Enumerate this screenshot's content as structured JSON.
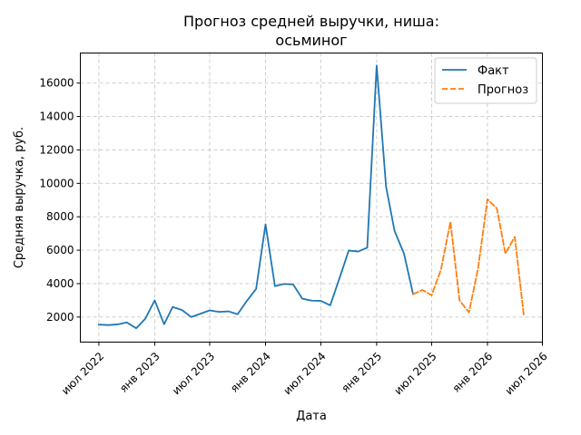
{
  "chart_data": {
    "type": "line",
    "title_lines": [
      "Прогноз средней выручки, ниша:",
      "осьминог"
    ],
    "xlabel": "Дата",
    "ylabel": "Средняя выручка, руб.",
    "x_ticks": [
      "2022-07-01",
      "2023-01-01",
      "2023-07-01",
      "2024-01-01",
      "2024-07-01",
      "2025-01-01",
      "2025-07-01",
      "2026-01-01",
      "2026-07-01"
    ],
    "x_tick_labels": [
      "июл 2022",
      "янв 2023",
      "июл 2023",
      "янв 2024",
      "июл 2024",
      "янв 2025",
      "июл 2025",
      "янв 2026",
      "июл 2026"
    ],
    "xlim": [
      "2022-05-01",
      "2026-07-01"
    ],
    "y_ticks": [
      2000,
      4000,
      6000,
      8000,
      10000,
      12000,
      14000,
      16000
    ],
    "y_tick_labels": [
      "2000",
      "4000",
      "6000",
      "8000",
      "10000",
      "12000",
      "14000",
      "16000"
    ],
    "ylim": [
      500,
      17800
    ],
    "grid": true,
    "legend_position": "top-right",
    "series": [
      {
        "name": "Факт",
        "color": "#1f77b4",
        "style": "solid",
        "points": [
          [
            "2022-07-01",
            1550
          ],
          [
            "2022-08-01",
            1520
          ],
          [
            "2022-09-01",
            1560
          ],
          [
            "2022-10-01",
            1680
          ],
          [
            "2022-11-01",
            1330
          ],
          [
            "2022-12-01",
            1900
          ],
          [
            "2023-01-01",
            3000
          ],
          [
            "2023-02-01",
            1570
          ],
          [
            "2023-03-01",
            2600
          ],
          [
            "2023-04-01",
            2420
          ],
          [
            "2023-05-01",
            2000
          ],
          [
            "2023-06-01",
            2200
          ],
          [
            "2023-07-01",
            2400
          ],
          [
            "2023-08-01",
            2310
          ],
          [
            "2023-09-01",
            2340
          ],
          [
            "2023-10-01",
            2170
          ],
          [
            "2023-11-01",
            2980
          ],
          [
            "2023-12-01",
            3680
          ],
          [
            "2024-01-01",
            7550
          ],
          [
            "2024-02-01",
            3850
          ],
          [
            "2024-03-01",
            3980
          ],
          [
            "2024-04-01",
            3950
          ],
          [
            "2024-05-01",
            3100
          ],
          [
            "2024-06-01",
            2980
          ],
          [
            "2024-07-01",
            2970
          ],
          [
            "2024-08-01",
            2700
          ],
          [
            "2024-09-01",
            4340
          ],
          [
            "2024-10-01",
            5980
          ],
          [
            "2024-11-01",
            5920
          ],
          [
            "2024-12-01",
            6150
          ],
          [
            "2025-01-01",
            17050
          ],
          [
            "2025-02-01",
            9800
          ],
          [
            "2025-03-01",
            7150
          ],
          [
            "2025-04-01",
            5800
          ],
          [
            "2025-05-01",
            3370
          ]
        ]
      },
      {
        "name": "Прогноз",
        "color": "#ff7f0e",
        "style": "dashed",
        "points": [
          [
            "2025-05-01",
            3370
          ],
          [
            "2025-06-01",
            3620
          ],
          [
            "2025-07-01",
            3300
          ],
          [
            "2025-08-01",
            4850
          ],
          [
            "2025-09-01",
            7700
          ],
          [
            "2025-10-01",
            3000
          ],
          [
            "2025-11-01",
            2280
          ],
          [
            "2025-12-01",
            4900
          ],
          [
            "2026-01-01",
            9050
          ],
          [
            "2026-02-01",
            8500
          ],
          [
            "2026-03-01",
            5800
          ],
          [
            "2026-04-01",
            6800
          ],
          [
            "2026-05-01",
            2050
          ]
        ]
      }
    ]
  }
}
